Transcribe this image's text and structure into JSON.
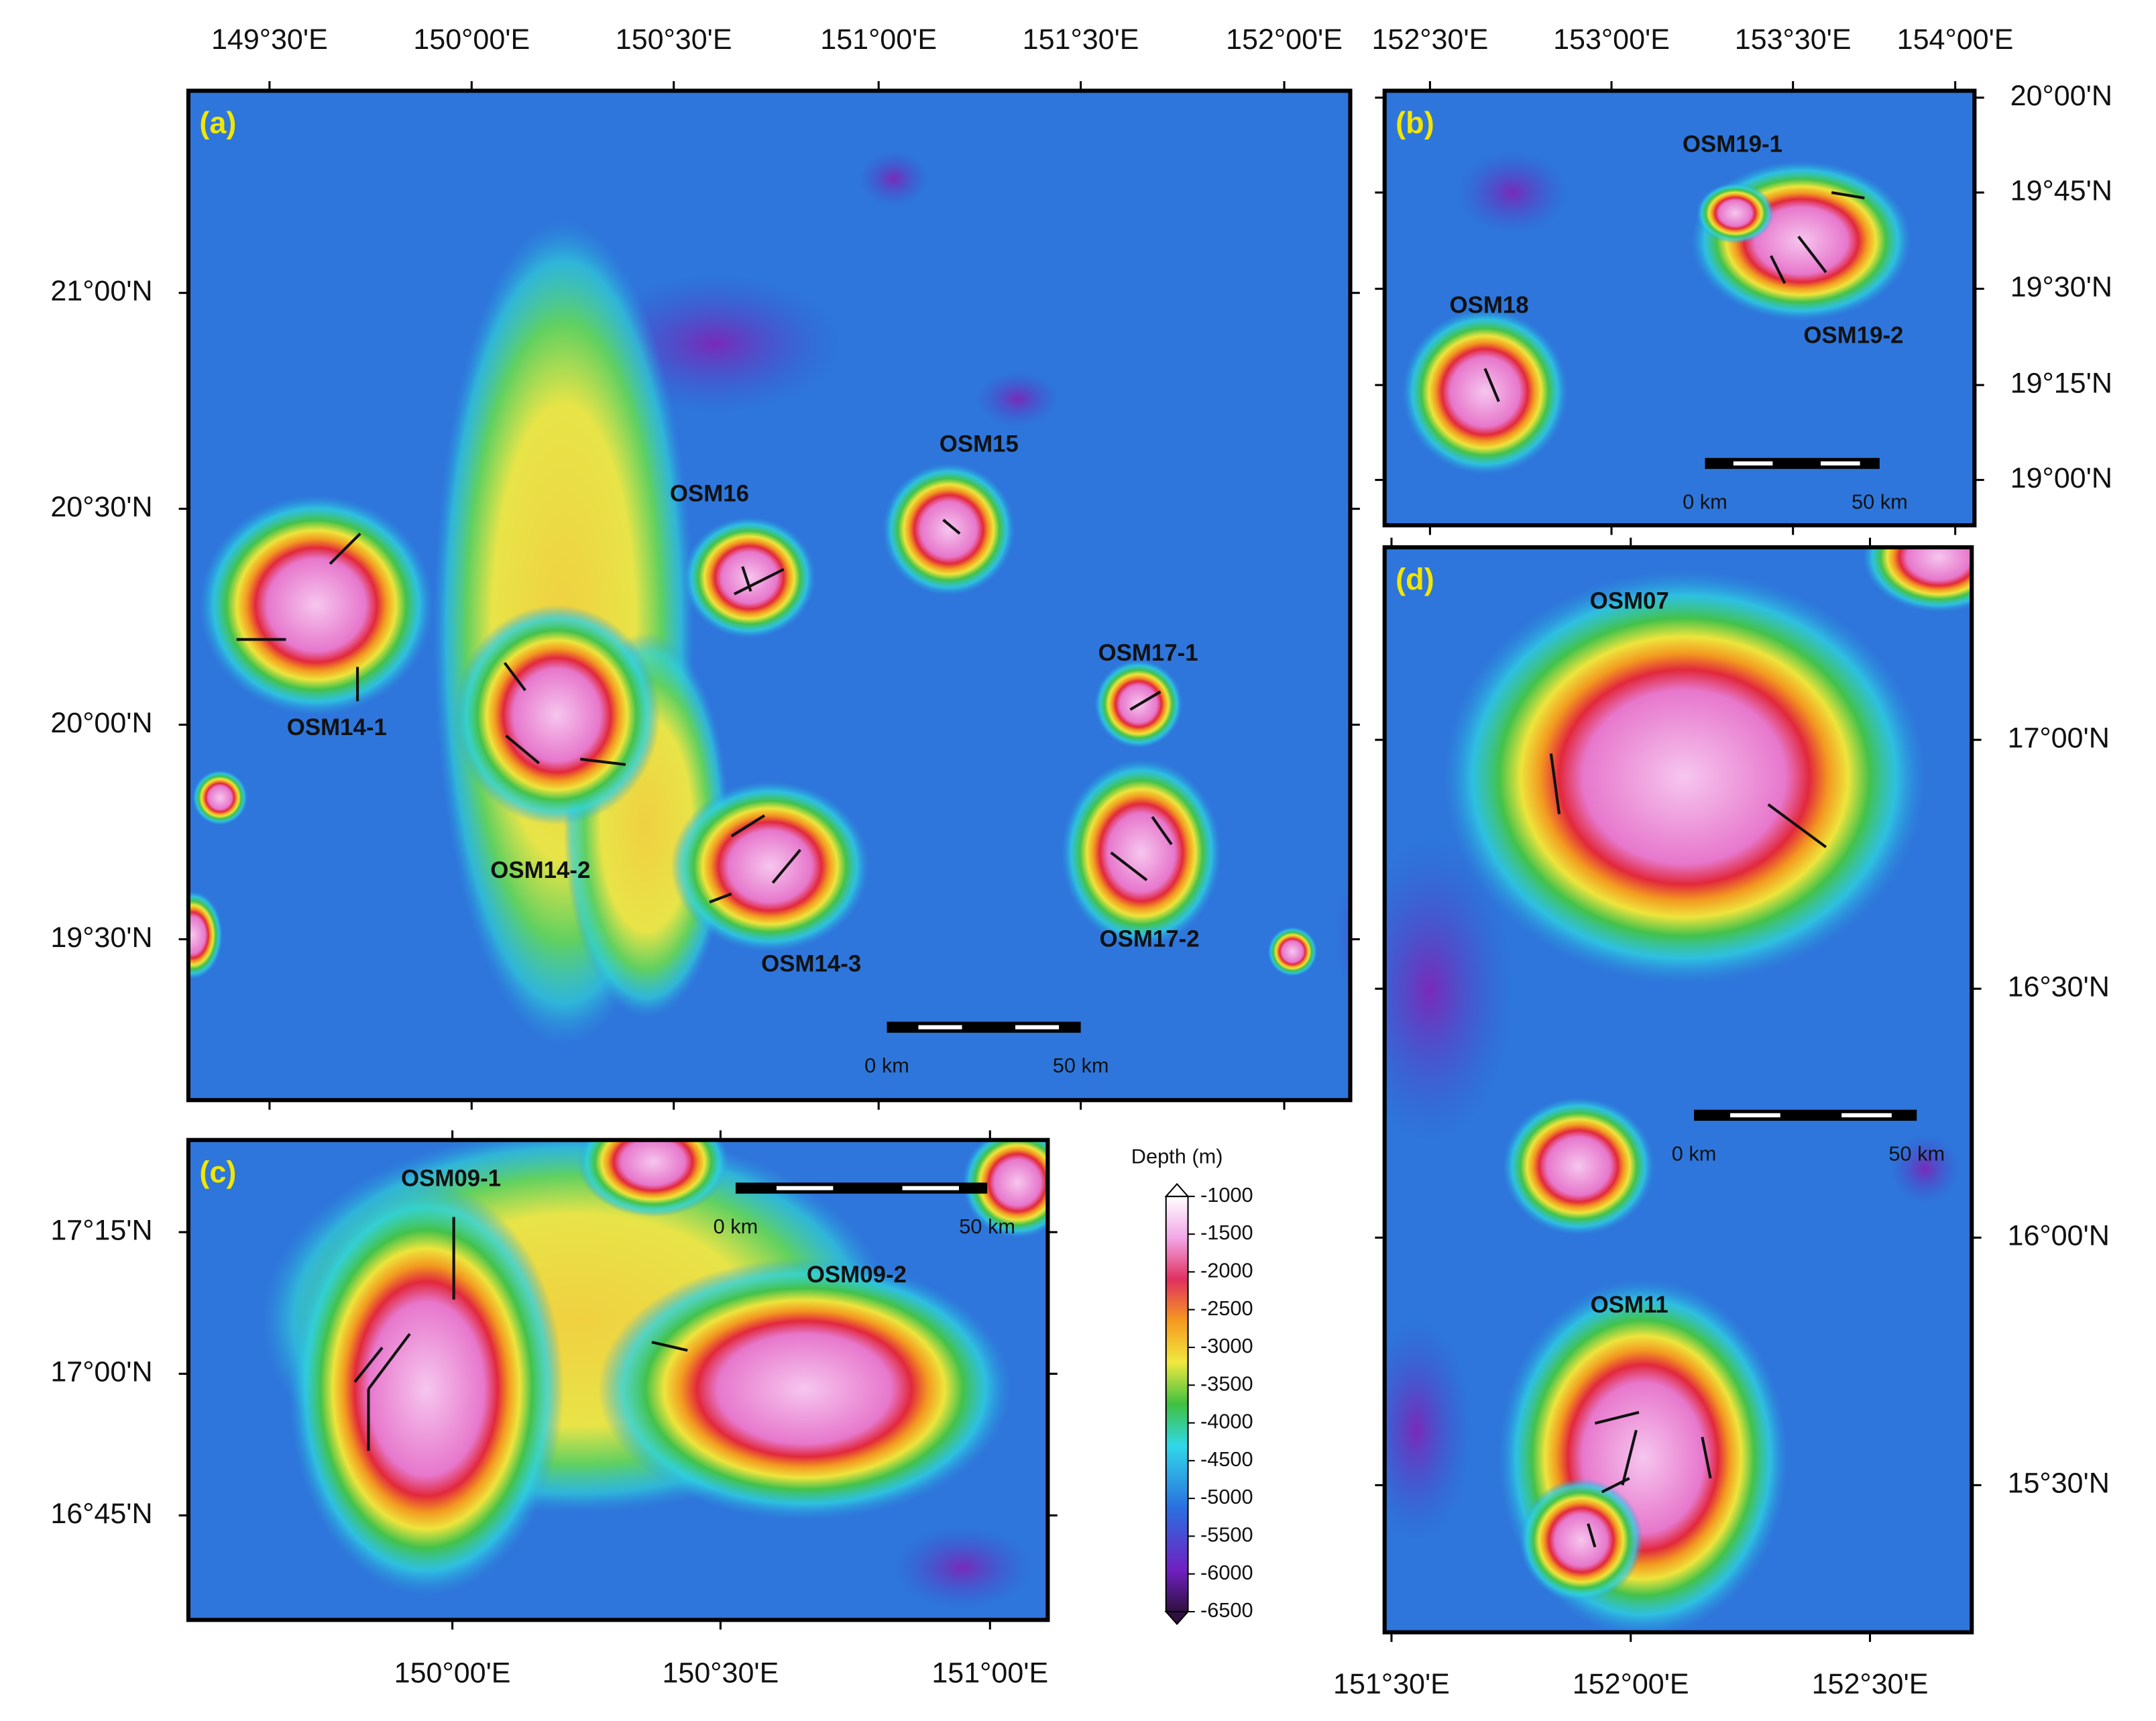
{
  "panels": [
    {
      "letter": "(a)",
      "top_ticks": [
        "149°30'E",
        "150°00'E",
        "150°30'E",
        "151°00'E",
        "151°30'E",
        "152°00'E"
      ],
      "side_ticks": [
        "21°00'N",
        "20°30'N",
        "20°00'N",
        "19°30'N"
      ],
      "labels": [
        "OSM16",
        "OSM15",
        "OSM17-1",
        "OSM14-1",
        "OSM14-2",
        "OSM14-3",
        "OSM17-2"
      ],
      "scale": [
        "0 km",
        "50 km"
      ]
    },
    {
      "letter": "(b)",
      "top_ticks": [
        "152°30'E",
        "153°00'E",
        "153°30'E",
        "154°00'E"
      ],
      "side_ticks": [
        "20°00'N",
        "19°45'N",
        "19°30'N",
        "19°15'N",
        "19°00'N"
      ],
      "labels": [
        "OSM19-1",
        "OSM18",
        "OSM19-2"
      ],
      "scale": [
        "0 km",
        "50 km"
      ]
    },
    {
      "letter": "(c)",
      "bottom_ticks": [
        "150°00'E",
        "150°30'E",
        "151°00'E"
      ],
      "side_ticks": [
        "17°15'N",
        "17°00'N",
        "16°45'N"
      ],
      "labels": [
        "OSM09-1",
        "OSM09-2"
      ],
      "scale": [
        "0 km",
        "50 km"
      ]
    },
    {
      "letter": "(d)",
      "bottom_ticks": [
        "151°30'E",
        "152°00'E",
        "152°30'E"
      ],
      "side_ticks": [
        "17°00'N",
        "16°30'N",
        "16°00'N",
        "15°30'N"
      ],
      "labels": [
        "OSM07",
        "OSM11"
      ],
      "scale": [
        "0 km",
        "50 km"
      ]
    }
  ],
  "colorbar": {
    "title": "Depth (m)",
    "ticks": [
      -1000,
      -1500,
      -2000,
      -2500,
      -3000,
      -3500,
      -4000,
      -4500,
      -5000,
      -5500,
      -6000,
      -6500
    ]
  }
}
